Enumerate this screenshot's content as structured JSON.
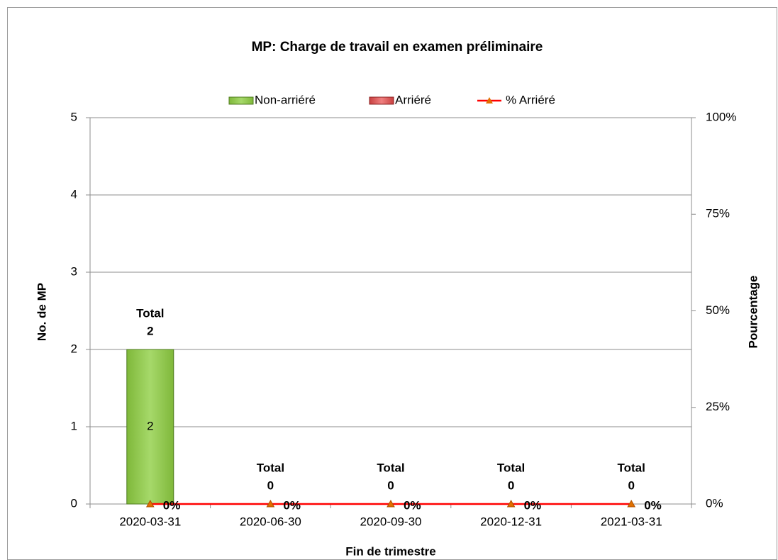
{
  "chart_data": {
    "type": "bar",
    "title": "MP:  Charge de travail en examen préliminaire",
    "x_label": "Fin de trimestre",
    "y_label": "No. de MP",
    "y2_label": "Pourcentage",
    "categories": [
      "2020-03-31",
      "2020-06-30",
      "2020-09-30",
      "2020-12-31",
      "2021-03-31"
    ],
    "series": [
      {
        "name": "Non-arriéré",
        "color": "#92c94e",
        "values": [
          2,
          0,
          0,
          0,
          0
        ]
      },
      {
        "name": "Arriéré",
        "color": "#e05a5a",
        "values": [
          0,
          0,
          0,
          0,
          0
        ]
      },
      {
        "name": "% Arriéré",
        "color": "#ff0000",
        "type": "line",
        "axis": "y2",
        "values": [
          0,
          0,
          0,
          0,
          0
        ],
        "value_labels": [
          "0%",
          "0%",
          "0%",
          "0%",
          "0%"
        ]
      }
    ],
    "total_label": "Total",
    "totals": [
      2,
      0,
      0,
      0,
      0
    ],
    "ylim": [
      0,
      5
    ],
    "yticks": [
      0,
      1,
      2,
      3,
      4,
      5
    ],
    "y2lim": [
      0,
      100
    ],
    "y2ticks": [
      {
        "value": 0,
        "label": "0%"
      },
      {
        "value": 25,
        "label": "25%"
      },
      {
        "value": 50,
        "label": "50%"
      },
      {
        "value": 75,
        "label": "75%"
      },
      {
        "value": 100,
        "label": "100%"
      }
    ],
    "grid": true,
    "legend": "top"
  }
}
